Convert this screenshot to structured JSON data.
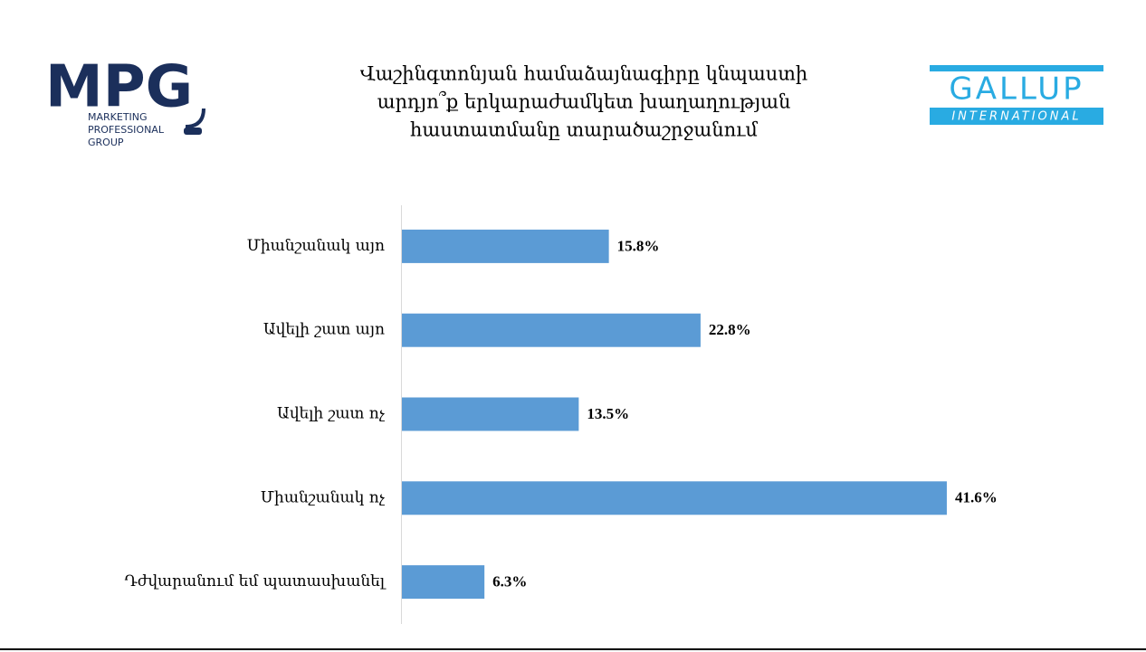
{
  "logos": {
    "left": {
      "name": "MPG",
      "text": [
        "MARKETING",
        "PROFESSIONAL",
        "GROUP"
      ]
    },
    "right": {
      "name": "GALLUP",
      "text": "INTERNATIONAL"
    }
  },
  "chart_data": {
    "type": "hbar",
    "title": [
      "Վաշինգտոնյան համաձայնագիրը կնպաստի",
      "արդյո՞ք երկարաժամկետ խաղաղության",
      "հաստատմանը տարածաշրջանում"
    ],
    "categories": [
      "Միանշանակ այո",
      "Ավելի շատ այո",
      "Ավելի շատ ոչ",
      "Միանշանակ ոչ",
      "Դժվարանում եմ պատասխանել"
    ],
    "values": [
      15.8,
      22.8,
      13.5,
      41.6,
      6.3
    ],
    "value_labels": [
      "15.8%",
      "22.8%",
      "13.5%",
      "41.6%",
      "6.3%"
    ],
    "color": "#5b9bd5",
    "xlim": [
      0,
      50
    ]
  }
}
